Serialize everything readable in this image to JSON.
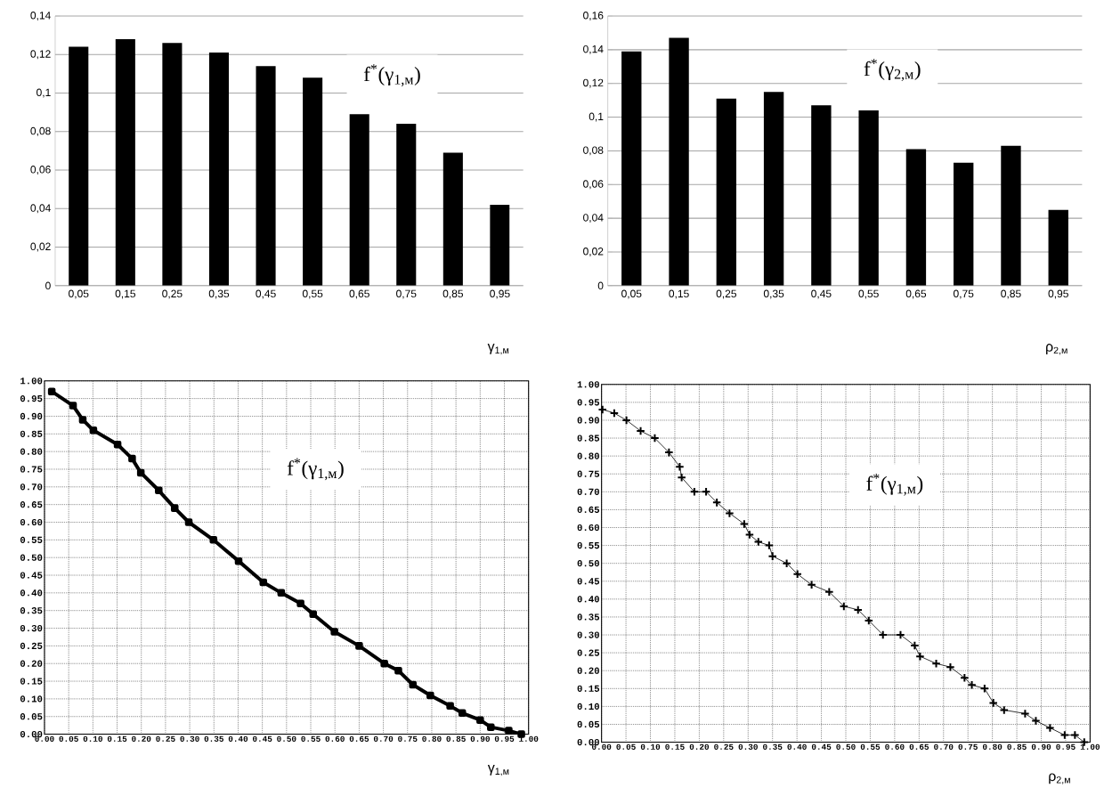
{
  "chart_data": [
    {
      "type": "bar",
      "categories": [
        "0,05",
        "0,15",
        "0,25",
        "0,35",
        "0,45",
        "0,55",
        "0,65",
        "0,75",
        "0,85",
        "0,95"
      ],
      "values": [
        0.124,
        0.128,
        0.126,
        0.121,
        0.114,
        0.108,
        0.089,
        0.084,
        0.069,
        0.042
      ],
      "color": "#000000",
      "xlabel": "γ$_{1,м}$",
      "annotations": [
        "f$^{*}$(γ$_{1,м}$)"
      ],
      "ylim": [
        0,
        0.14
      ],
      "yticks": [
        0,
        {
          "value": 0.02,
          "label": "0,02"
        },
        {
          "value": 0.04,
          "label": "0,04"
        },
        {
          "value": 0.06,
          "label": "0,06"
        },
        {
          "value": 0.08,
          "label": "0,08"
        },
        {
          "value": 0.1,
          "label": "0,1"
        },
        {
          "value": 0.12,
          "label": "0,12"
        },
        {
          "value": 0.14,
          "label": "0,14"
        }
      ],
      "grid": "y"
    },
    {
      "type": "bar",
      "categories": [
        "0,05",
        "0,15",
        "0,25",
        "0,35",
        "0,45",
        "0,55",
        "0,65",
        "0,75",
        "0,85",
        "0,95"
      ],
      "values": [
        0.139,
        0.147,
        0.111,
        0.115,
        0.107,
        0.104,
        0.081,
        0.073,
        0.083,
        0.045
      ],
      "color": "#000000",
      "xlabel": "ρ$_{2,м}$",
      "annotations": [
        "f$^{*}$(γ$_{2,м}$)"
      ],
      "ylim": [
        0,
        0.16
      ],
      "yticks": [
        0,
        {
          "value": 0.02,
          "label": "0,02"
        },
        {
          "value": 0.04,
          "label": "0,04"
        },
        {
          "value": 0.06,
          "label": "0,06"
        },
        {
          "value": 0.08,
          "label": "0,08"
        },
        {
          "value": 0.1,
          "label": "0,1"
        },
        {
          "value": 0.12,
          "label": "0,12"
        },
        {
          "value": 0.14,
          "label": "0,14"
        },
        {
          "value": 0.16,
          "label": "0,16"
        }
      ],
      "grid": "y"
    },
    {
      "type": "line",
      "color": "#000000",
      "marker": "square",
      "x": [
        0.015,
        0.059,
        0.079,
        0.101,
        0.151,
        0.181,
        0.199,
        0.236,
        0.269,
        0.298,
        0.349,
        0.401,
        0.452,
        0.489,
        0.529,
        0.555,
        0.599,
        0.65,
        0.702,
        0.731,
        0.761,
        0.797,
        0.838,
        0.863,
        0.9,
        0.922,
        0.959,
        0.985
      ],
      "values": [
        0.97,
        0.93,
        0.89,
        0.86,
        0.82,
        0.78,
        0.74,
        0.69,
        0.64,
        0.6,
        0.55,
        0.49,
        0.43,
        0.4,
        0.37,
        0.34,
        0.29,
        0.25,
        0.2,
        0.18,
        0.14,
        0.11,
        0.08,
        0.06,
        0.04,
        0.02,
        0.01,
        0
      ],
      "xlabel": "γ$_{1,м}$",
      "annotations": [
        "f$^{*}$(γ$_{1,м}$)"
      ],
      "xlim": [
        0,
        1
      ],
      "ylim": [
        0,
        1
      ],
      "xticks": [
        {
          "value": 0,
          "label": "0.00"
        },
        {
          "value": 0.05,
          "label": "0.05"
        },
        {
          "value": 0.1,
          "label": "0.10"
        },
        {
          "value": 0.15,
          "label": "0.15"
        },
        {
          "value": 0.2,
          "label": "0.20"
        },
        {
          "value": 0.25,
          "label": "0.25"
        },
        {
          "value": 0.3,
          "label": "0.30"
        },
        {
          "value": 0.35,
          "label": "0.35"
        },
        {
          "value": 0.4,
          "label": "0.40"
        },
        {
          "value": 0.45,
          "label": "0.45"
        },
        {
          "value": 0.5,
          "label": "0.50"
        },
        {
          "value": 0.55,
          "label": "0.55"
        },
        {
          "value": 0.6,
          "label": "0.60"
        },
        {
          "value": 0.65,
          "label": "0.65"
        },
        {
          "value": 0.7,
          "label": "0.70"
        },
        {
          "value": 0.75,
          "label": "0.75"
        },
        {
          "value": 0.8,
          "label": "0.80"
        },
        {
          "value": 0.85,
          "label": "0.85"
        },
        {
          "value": 0.9,
          "label": "0.90"
        },
        {
          "value": 0.95,
          "label": "0.95"
        },
        {
          "value": 1,
          "label": "1.00"
        }
      ],
      "yticks": [
        {
          "value": 0,
          "label": "0.00"
        },
        {
          "value": 0.05,
          "label": "0.05"
        },
        {
          "value": 0.1,
          "label": "0.10"
        },
        {
          "value": 0.15,
          "label": "0.15"
        },
        {
          "value": 0.2,
          "label": "0.20"
        },
        {
          "value": 0.25,
          "label": "0.25"
        },
        {
          "value": 0.3,
          "label": "0.30"
        },
        {
          "value": 0.35,
          "label": "0.35"
        },
        {
          "value": 0.4,
          "label": "0.40"
        },
        {
          "value": 0.45,
          "label": "0.45"
        },
        {
          "value": 0.5,
          "label": "0.50"
        },
        {
          "value": 0.55,
          "label": "0.55"
        },
        {
          "value": 0.6,
          "label": "0.60"
        },
        {
          "value": 0.65,
          "label": "0.65"
        },
        {
          "value": 0.7,
          "label": "0.70"
        },
        {
          "value": 0.75,
          "label": "0.75"
        },
        {
          "value": 0.8,
          "label": "0.80"
        },
        {
          "value": 0.85,
          "label": "0.85"
        },
        {
          "value": 0.9,
          "label": "0.90"
        },
        {
          "value": 0.95,
          "label": "0.95"
        },
        {
          "value": 1,
          "label": "1.00"
        }
      ],
      "grid": true
    },
    {
      "type": "line",
      "color": "#000000",
      "marker": "cross",
      "x": [
        0.002,
        0.026,
        0.051,
        0.08,
        0.109,
        0.138,
        0.16,
        0.164,
        0.19,
        0.214,
        0.236,
        0.262,
        0.292,
        0.303,
        0.321,
        0.343,
        0.35,
        0.379,
        0.401,
        0.43,
        0.466,
        0.496,
        0.525,
        0.547,
        0.576,
        0.612,
        0.641,
        0.652,
        0.685,
        0.714,
        0.743,
        0.758,
        0.784,
        0.802,
        0.824,
        0.867,
        0.889,
        0.918,
        0.948,
        0.969,
        0.988
      ],
      "values": [
        0.93,
        0.92,
        0.9,
        0.87,
        0.85,
        0.81,
        0.77,
        0.74,
        0.7,
        0.7,
        0.67,
        0.64,
        0.61,
        0.58,
        0.56,
        0.55,
        0.52,
        0.5,
        0.47,
        0.44,
        0.42,
        0.38,
        0.37,
        0.34,
        0.3,
        0.3,
        0.27,
        0.24,
        0.22,
        0.21,
        0.18,
        0.16,
        0.15,
        0.11,
        0.09,
        0.08,
        0.06,
        0.04,
        0.02,
        0.02,
        0
      ],
      "xlabel": "ρ$_{2,м}$",
      "annotations": [
        "f$^{*}$(γ$_{1,м}$)"
      ],
      "xlim": [
        0,
        1
      ],
      "ylim": [
        0,
        1
      ],
      "xticks": [
        {
          "value": 0,
          "label": "0.00"
        },
        {
          "value": 0.05,
          "label": "0.05"
        },
        {
          "value": 0.1,
          "label": "0.10"
        },
        {
          "value": 0.15,
          "label": "0.15"
        },
        {
          "value": 0.2,
          "label": "0.20"
        },
        {
          "value": 0.25,
          "label": "0.25"
        },
        {
          "value": 0.3,
          "label": "0.30"
        },
        {
          "value": 0.35,
          "label": "0.35"
        },
        {
          "value": 0.4,
          "label": "0.40"
        },
        {
          "value": 0.45,
          "label": "0.45"
        },
        {
          "value": 0.5,
          "label": "0.50"
        },
        {
          "value": 0.55,
          "label": "0.55"
        },
        {
          "value": 0.6,
          "label": "0.60"
        },
        {
          "value": 0.65,
          "label": "0.65"
        },
        {
          "value": 0.7,
          "label": "0.70"
        },
        {
          "value": 0.75,
          "label": "0.75"
        },
        {
          "value": 0.8,
          "label": "0.80"
        },
        {
          "value": 0.85,
          "label": "0.85"
        },
        {
          "value": 0.9,
          "label": "0.90"
        },
        {
          "value": 0.95,
          "label": "0.95"
        },
        {
          "value": 1,
          "label": "1.00"
        }
      ],
      "yticks": [
        {
          "value": 0,
          "label": "0.00"
        },
        {
          "value": 0.05,
          "label": "0.05"
        },
        {
          "value": 0.1,
          "label": "0.10"
        },
        {
          "value": 0.15,
          "label": "0.15"
        },
        {
          "value": 0.2,
          "label": "0.20"
        },
        {
          "value": 0.25,
          "label": "0.25"
        },
        {
          "value": 0.3,
          "label": "0.30"
        },
        {
          "value": 0.35,
          "label": "0.35"
        },
        {
          "value": 0.4,
          "label": "0.40"
        },
        {
          "value": 0.45,
          "label": "0.45"
        },
        {
          "value": 0.5,
          "label": "0.50"
        },
        {
          "value": 0.55,
          "label": "0.55"
        },
        {
          "value": 0.6,
          "label": "0.60"
        },
        {
          "value": 0.65,
          "label": "0.65"
        },
        {
          "value": 0.7,
          "label": "0.70"
        },
        {
          "value": 0.75,
          "label": "0.75"
        },
        {
          "value": 0.8,
          "label": "0.80"
        },
        {
          "value": 0.85,
          "label": "0.85"
        },
        {
          "value": 0.9,
          "label": "0.90"
        },
        {
          "value": 0.95,
          "label": "0.95"
        },
        {
          "value": 1,
          "label": "1.00"
        }
      ],
      "grid": true
    }
  ]
}
